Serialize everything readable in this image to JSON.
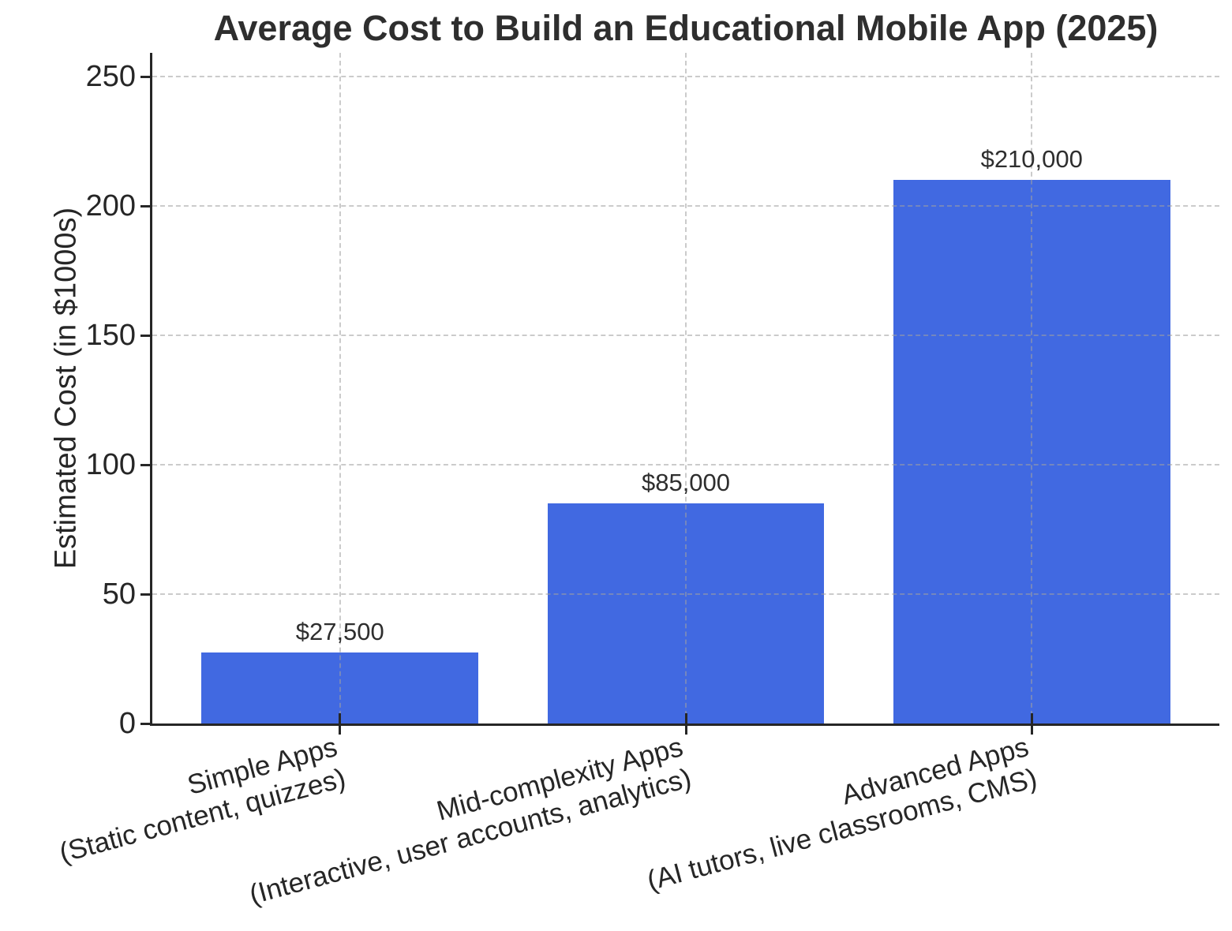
{
  "title": "Average Cost to Build an Educational Mobile App (2025)",
  "chart_data": {
    "type": "bar",
    "title": "Average Cost to Build an Educational Mobile App (2025)",
    "xlabel": "",
    "ylabel": "Estimated Cost (in $1000s)",
    "categories": [
      "Simple Apps\n(Static content, quizzes)",
      "Mid-complexity Apps\n(Interactive, user accounts, analytics)",
      "Advanced Apps\n(AI tutors, live classrooms, CMS)"
    ],
    "values": [
      27.5,
      85,
      210
    ],
    "value_labels": [
      "$27,500",
      "$85,000",
      "$210,000"
    ],
    "yticks": [
      0,
      50,
      100,
      150,
      200,
      250
    ],
    "ylim": [
      0,
      259
    ],
    "grid": "dashed gridlines on both axes, drawn over bars",
    "legend": "none",
    "bar_color": "#4169E1"
  },
  "colors": {
    "bar": "#4169E1",
    "grid": "#c9c9c9",
    "axis": "#262626",
    "text": "#2e2e2e",
    "background": "#ffffff"
  }
}
